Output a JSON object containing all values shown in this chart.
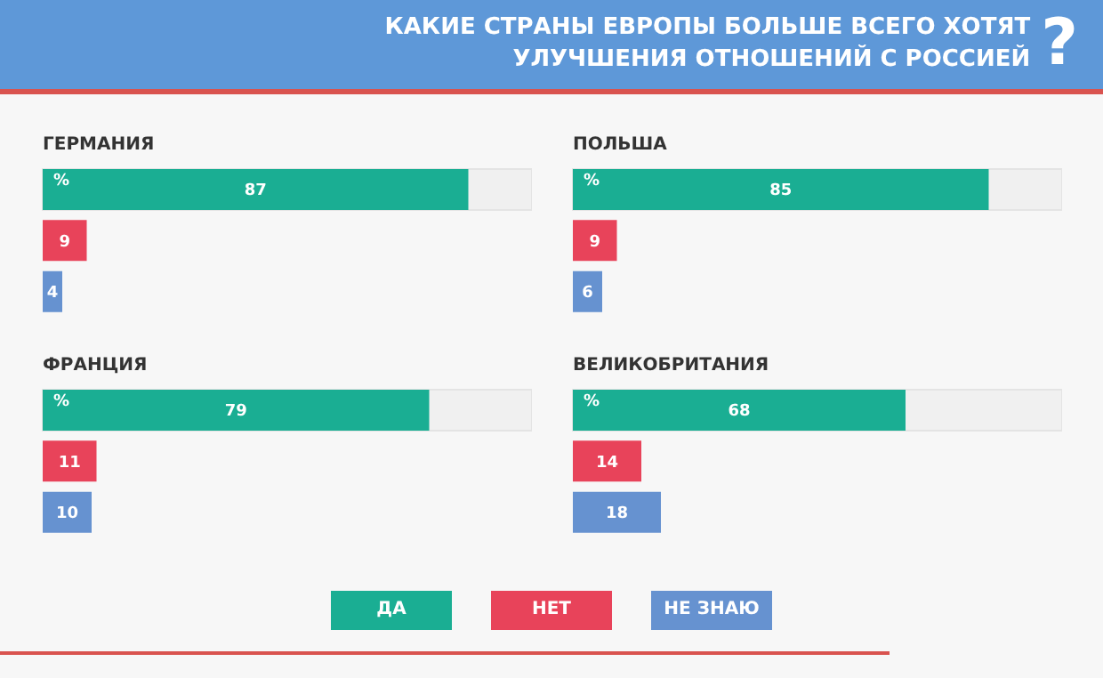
{
  "chart_data": [
    {
      "type": "bar",
      "orientation": "horizontal",
      "stacked": true,
      "title": "КАКИЕ СТРАНЫ ЕВРОПЫ БОЛЬШЕ ВСЕГО ХОТЯТ УЛУЧШЕНИЯ ОТНОШЕНИЙ С РОССИЕЙ?",
      "subtitle": "ГЕРМАНИЯ",
      "categories": [
        null,
        null,
        null
      ],
      "xlim": [
        0,
        100
      ],
      "tick_labels": false,
      "data_labels": true,
      "annotations": [
        "%"
      ],
      "series": [
        {
          "color": "#1aae93",
          "values": [
            87,
            null,
            null
          ]
        },
        {
          "color": "#e8435a",
          "values": [
            null,
            9,
            null
          ]
        },
        {
          "color": "#6692d0",
          "values": [
            null,
            null,
            4
          ]
        }
      ]
    },
    {
      "type": "bar",
      "orientation": "horizontal",
      "stacked": true,
      "subtitle": "ПОЛЬША",
      "categories": [
        null,
        null,
        null
      ],
      "xlim": [
        0,
        100
      ],
      "tick_labels": false,
      "data_labels": true,
      "annotations": [
        "%"
      ],
      "series": [
        {
          "color": "#1aae93",
          "values": [
            85,
            null,
            null
          ]
        },
        {
          "color": "#e8435a",
          "values": [
            null,
            9,
            null
          ]
        },
        {
          "color": "#6692d0",
          "values": [
            null,
            null,
            6
          ]
        }
      ]
    },
    {
      "type": "bar",
      "orientation": "horizontal",
      "stacked": true,
      "subtitle": "ФРАНЦИЯ",
      "categories": [
        null,
        null,
        null
      ],
      "xlim": [
        0,
        100
      ],
      "tick_labels": false,
      "data_labels": true,
      "annotations": [
        "%"
      ],
      "series": [
        {
          "color": "#1aae93",
          "values": [
            79,
            null,
            null
          ]
        },
        {
          "color": "#e8435a",
          "values": [
            null,
            11,
            null
          ]
        },
        {
          "color": "#6692d0",
          "values": [
            null,
            null,
            10
          ]
        }
      ]
    },
    {
      "type": "bar",
      "orientation": "horizontal",
      "stacked": true,
      "subtitle": "ВЕЛИКОБРИТАНИЯ",
      "categories": [
        null,
        null,
        null
      ],
      "xlim": [
        0,
        100
      ],
      "tick_labels": false,
      "data_labels": true,
      "annotations": [
        "%"
      ],
      "legend": "bottom",
      "series": [
        {
          "name": "ДА",
          "color": "#1aae93",
          "values": [
            68,
            null,
            null
          ]
        },
        {
          "name": "НЕТ",
          "color": "#e8435a",
          "values": [
            null,
            14,
            null
          ]
        },
        {
          "name": "НЕ ЗНАЮ",
          "color": "#6692d0",
          "values": [
            null,
            null,
            18
          ]
        }
      ]
    }
  ]
}
